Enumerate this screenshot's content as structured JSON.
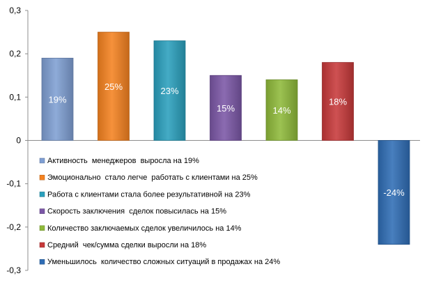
{
  "chart_data": {
    "type": "bar",
    "title": "",
    "xlabel": "",
    "ylabel": "",
    "ylim": [
      -0.3,
      0.3
    ],
    "yticks": [
      {
        "value": 0.3,
        "label": "0,3"
      },
      {
        "value": 0.2,
        "label": "0,2"
      },
      {
        "value": 0.1,
        "label": "0,1"
      },
      {
        "value": 0,
        "label": "0"
      },
      {
        "value": -0.1,
        "label": "-0,1"
      },
      {
        "value": -0.2,
        "label": "-0,2"
      },
      {
        "value": -0.3,
        "label": "-0,3"
      }
    ],
    "grid": false,
    "legend_position": "left",
    "series": [
      {
        "name": "Активность  менеджеров  выросла на 19%",
        "value": 0.19,
        "label": "19%",
        "color": "#7f9fd3"
      },
      {
        "name": "Эмоционально  стало легче  работать с клиентами на 25%",
        "value": 0.25,
        "label": "25%",
        "color": "#f58220"
      },
      {
        "name": "Работа с клиентами стала более результативной на 23%",
        "value": 0.23,
        "label": "23%",
        "color": "#2aa0bd"
      },
      {
        "name": "Скорость заключения  сделок повысилась на 15%",
        "value": 0.15,
        "label": "15%",
        "color": "#7b57a6"
      },
      {
        "name": "Количество заключаемых сделок увеличилось на 14%",
        "value": 0.14,
        "label": "14%",
        "color": "#8fba3a"
      },
      {
        "name": "Средний  чек/сумма сделки выросли на 18%",
        "value": 0.18,
        "label": "18%",
        "color": "#c7393a"
      },
      {
        "name": "Уменьшилось  количество сложных ситуаций в продажах на 24%",
        "value": -0.24,
        "label": "-24%",
        "color": "#2f6db5"
      }
    ]
  }
}
